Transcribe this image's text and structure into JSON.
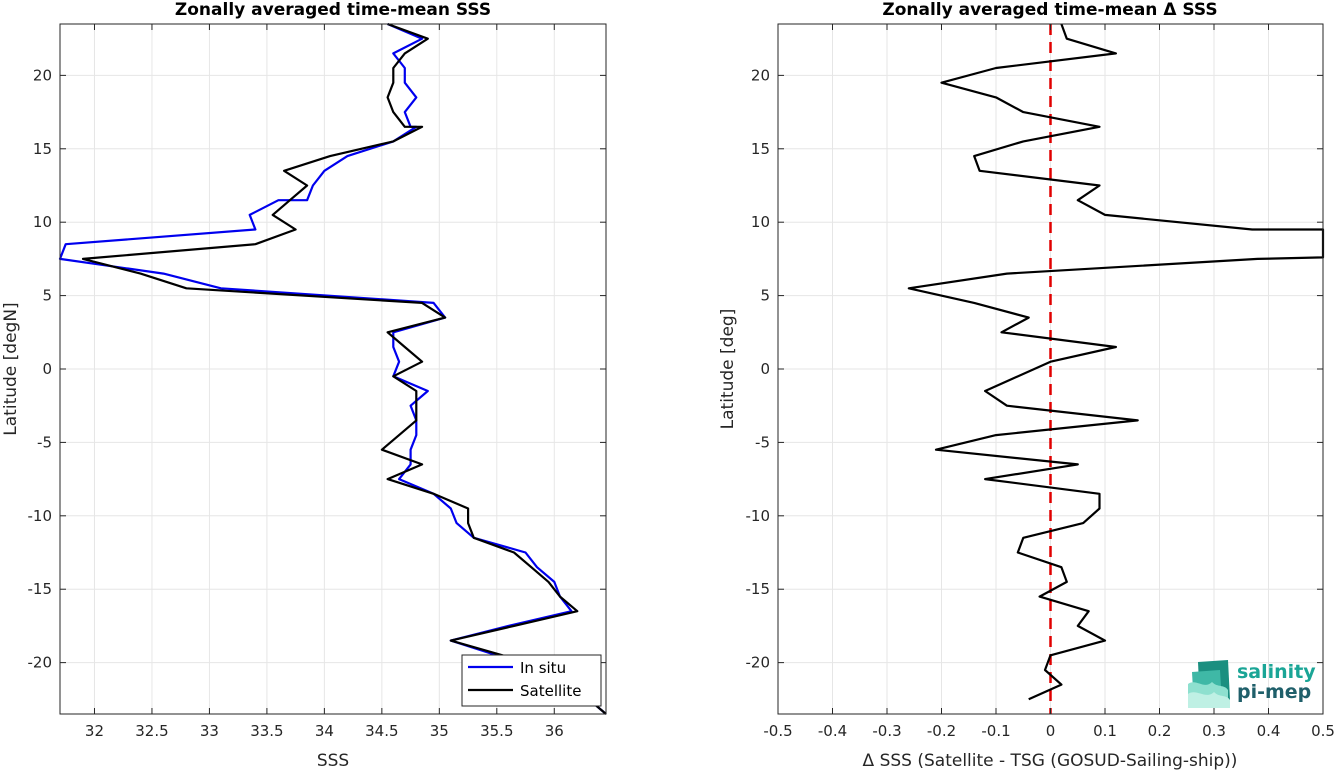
{
  "chart_data": [
    {
      "type": "line",
      "title": "Zonally averaged time-mean SSS",
      "xlabel": "SSS",
      "ylabel": "Latitude [degN]",
      "xlim": [
        31.7,
        36.45
      ],
      "ylim": [
        -23.5,
        23.5
      ],
      "xticks": [
        32,
        32.5,
        33,
        33.5,
        34,
        34.5,
        35,
        35.5,
        36
      ],
      "yticks": [
        -20,
        -15,
        -10,
        -5,
        0,
        5,
        10,
        15,
        20
      ],
      "grid": true,
      "legend_position": "bottom-right",
      "series": [
        {
          "name": "In situ",
          "color": "#0000ee",
          "points": [
            [
              34.55,
              23.5
            ],
            [
              34.85,
              22.5
            ],
            [
              34.6,
              21.5
            ],
            [
              34.7,
              20.5
            ],
            [
              34.7,
              19.5
            ],
            [
              34.8,
              18.5
            ],
            [
              34.7,
              17.5
            ],
            [
              34.75,
              16.5
            ],
            [
              34.8,
              16.5
            ],
            [
              34.6,
              15.5
            ],
            [
              34.2,
              14.5
            ],
            [
              34.0,
              13.5
            ],
            [
              33.9,
              12.5
            ],
            [
              33.85,
              11.5
            ],
            [
              33.6,
              11.5
            ],
            [
              33.35,
              10.5
            ],
            [
              33.4,
              9.5
            ],
            [
              31.75,
              8.5
            ],
            [
              31.7,
              7.5
            ],
            [
              32.6,
              6.5
            ],
            [
              33.1,
              5.5
            ],
            [
              34.95,
              4.5
            ],
            [
              35.05,
              3.5
            ],
            [
              34.6,
              2.5
            ],
            [
              34.6,
              1.5
            ],
            [
              34.65,
              0.5
            ],
            [
              34.6,
              -0.5
            ],
            [
              34.9,
              -1.5
            ],
            [
              34.75,
              -2.5
            ],
            [
              34.8,
              -3.5
            ],
            [
              34.8,
              -4.5
            ],
            [
              34.75,
              -5.5
            ],
            [
              34.75,
              -6.5
            ],
            [
              34.65,
              -7.5
            ],
            [
              34.95,
              -8.5
            ],
            [
              35.1,
              -9.5
            ],
            [
              35.15,
              -10.5
            ],
            [
              35.3,
              -11.5
            ],
            [
              35.75,
              -12.5
            ],
            [
              35.85,
              -13.5
            ],
            [
              36.0,
              -14.5
            ],
            [
              36.05,
              -15.5
            ],
            [
              36.15,
              -16.5
            ],
            [
              35.6,
              -17.5
            ],
            [
              35.1,
              -18.5
            ],
            [
              35.5,
              -19.5
            ],
            [
              35.9,
              -20.5
            ],
            [
              36.1,
              -21.5
            ],
            [
              36.3,
              -22.5
            ],
            [
              36.45,
              -23.5
            ]
          ]
        },
        {
          "name": "Satellite",
          "color": "#000000",
          "points": [
            [
              34.55,
              23.5
            ],
            [
              34.9,
              22.5
            ],
            [
              34.7,
              21.5
            ],
            [
              34.6,
              20.5
            ],
            [
              34.6,
              19.5
            ],
            [
              34.55,
              18.5
            ],
            [
              34.6,
              17.5
            ],
            [
              34.7,
              16.5
            ],
            [
              34.85,
              16.5
            ],
            [
              34.6,
              15.5
            ],
            [
              34.05,
              14.5
            ],
            [
              33.65,
              13.5
            ],
            [
              33.85,
              12.5
            ],
            [
              33.7,
              11.5
            ],
            [
              33.55,
              10.5
            ],
            [
              33.75,
              9.5
            ],
            [
              33.4,
              8.5
            ],
            [
              31.9,
              7.5
            ],
            [
              32.4,
              6.5
            ],
            [
              32.8,
              5.5
            ],
            [
              34.85,
              4.5
            ],
            [
              35.05,
              3.5
            ],
            [
              34.55,
              2.5
            ],
            [
              34.7,
              1.5
            ],
            [
              34.85,
              0.5
            ],
            [
              34.6,
              -0.5
            ],
            [
              34.8,
              -1.5
            ],
            [
              34.8,
              -2.5
            ],
            [
              34.8,
              -3.5
            ],
            [
              34.65,
              -4.5
            ],
            [
              34.5,
              -5.5
            ],
            [
              34.85,
              -6.5
            ],
            [
              34.55,
              -7.5
            ],
            [
              34.95,
              -8.5
            ],
            [
              35.25,
              -9.5
            ],
            [
              35.25,
              -10.5
            ],
            [
              35.3,
              -11.5
            ],
            [
              35.65,
              -12.5
            ],
            [
              35.8,
              -13.5
            ],
            [
              35.95,
              -14.5
            ],
            [
              36.05,
              -15.5
            ],
            [
              36.2,
              -16.5
            ],
            [
              35.65,
              -17.5
            ],
            [
              35.1,
              -18.5
            ],
            [
              35.55,
              -19.5
            ],
            [
              35.95,
              -20.5
            ],
            [
              36.1,
              -21.5
            ],
            [
              36.3,
              -22.5
            ],
            [
              36.45,
              -23.5
            ]
          ]
        }
      ]
    },
    {
      "type": "line",
      "title": "Zonally averaged time-mean Δ SSS",
      "xlabel": "Δ SSS (Satellite - TSG (GOSUD-Sailing-ship))",
      "ylabel": "Latitude [deg]",
      "xlim": [
        -0.5,
        0.5
      ],
      "ylim": [
        -23.5,
        23.5
      ],
      "xticks": [
        -0.5,
        -0.4,
        -0.3,
        -0.2,
        -0.1,
        0,
        0.1,
        0.2,
        0.3,
        0.4,
        0.5
      ],
      "yticks": [
        -20,
        -15,
        -10,
        -5,
        0,
        5,
        10,
        15,
        20
      ],
      "grid": true,
      "series": [
        {
          "color": "#000000",
          "points": [
            [
              0.02,
              23.5
            ],
            [
              0.03,
              22.5
            ],
            [
              0.12,
              21.5
            ],
            [
              -0.1,
              20.5
            ],
            [
              -0.2,
              19.5
            ],
            [
              -0.1,
              18.5
            ],
            [
              -0.05,
              17.5
            ],
            [
              0.09,
              16.5
            ],
            [
              -0.05,
              15.5
            ],
            [
              -0.14,
              14.5
            ],
            [
              -0.13,
              13.5
            ],
            [
              0.09,
              12.5
            ],
            [
              0.05,
              11.5
            ],
            [
              0.1,
              10.5
            ],
            [
              0.37,
              9.5
            ],
            [
              0.5,
              9.5
            ],
            [
              0.5,
              7.6
            ],
            [
              0.38,
              7.5
            ],
            [
              -0.08,
              6.5
            ],
            [
              -0.26,
              5.5
            ],
            [
              -0.14,
              4.5
            ],
            [
              -0.04,
              3.5
            ],
            [
              -0.09,
              2.5
            ],
            [
              0.12,
              1.5
            ],
            [
              0.0,
              0.5
            ],
            [
              -0.12,
              -1.5
            ],
            [
              -0.08,
              -2.5
            ],
            [
              0.16,
              -3.5
            ],
            [
              -0.1,
              -4.5
            ],
            [
              -0.21,
              -5.5
            ],
            [
              0.05,
              -6.5
            ],
            [
              -0.12,
              -7.5
            ],
            [
              0.09,
              -8.5
            ],
            [
              0.09,
              -9.5
            ],
            [
              0.06,
              -10.5
            ],
            [
              -0.05,
              -11.5
            ],
            [
              -0.06,
              -12.5
            ],
            [
              0.02,
              -13.5
            ],
            [
              0.03,
              -14.5
            ],
            [
              -0.02,
              -15.5
            ],
            [
              0.07,
              -16.5
            ],
            [
              0.05,
              -17.5
            ],
            [
              0.1,
              -18.5
            ],
            [
              0.0,
              -19.5
            ],
            [
              -0.01,
              -20.5
            ],
            [
              0.02,
              -21.5
            ],
            [
              -0.04,
              -22.5
            ]
          ]
        }
      ],
      "reference_line": {
        "x": 0,
        "color": "#e00000",
        "style": "dashed"
      }
    }
  ],
  "legend": {
    "items": [
      "In situ",
      "Satellite"
    ]
  },
  "logo": {
    "line1": "salinity",
    "line2": "pi-mep"
  }
}
